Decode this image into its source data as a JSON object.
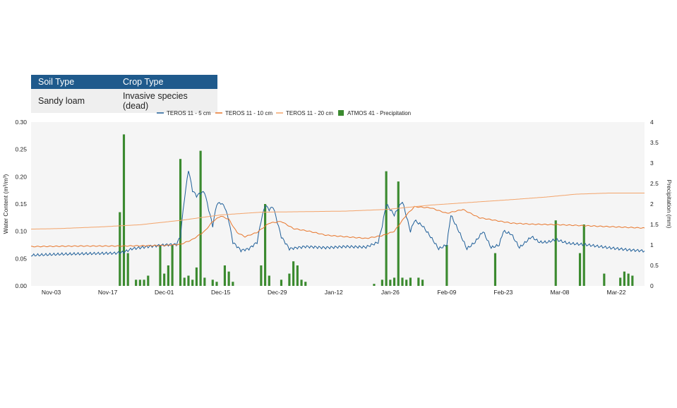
{
  "table": {
    "headers": [
      "Soil Type",
      "Crop Type"
    ],
    "row": [
      "Sandy loam",
      "Invasive species (dead)"
    ]
  },
  "chart_data": {
    "type": "line",
    "title": "",
    "xlabel": "",
    "ylabel": "Water Content (m³/m³)",
    "y2label": "Precipitation (mm)",
    "ylim": [
      0,
      0.3
    ],
    "y2lim": [
      0,
      4
    ],
    "xlim": [
      "2023-10-29",
      "2024-03-29"
    ],
    "x_ticks": [
      "Nov-03",
      "Nov-17",
      "Dec-01",
      "Dec-15",
      "Dec-29",
      "Jan-12",
      "Jan-26",
      "Feb-09",
      "Feb-23",
      "Mar-08",
      "Mar-22"
    ],
    "y_ticks": [
      "0.00",
      "0.05",
      "0.10",
      "0.15",
      "0.20",
      "0.25",
      "0.30"
    ],
    "y2_ticks": [
      "0",
      "0.5",
      "1",
      "1.5",
      "2",
      "2.5",
      "3",
      "3.5",
      "4"
    ],
    "legend_position": "top",
    "grid": false,
    "colors": {
      "teros5": "#1f5f99",
      "teros10": "#e8762b",
      "teros20": "#f3a46b",
      "precip": "#3b8a2f",
      "plot_bg": "#f5f5f5",
      "table_header": "#1f5a8c"
    },
    "series": [
      {
        "name": "TEROS 11 - 5 cm",
        "color": "#1f5f99",
        "points": [
          [
            "2023-10-29",
            0.056
          ],
          [
            "2023-11-05",
            0.058
          ],
          [
            "2023-11-12",
            0.059
          ],
          [
            "2023-11-19",
            0.06
          ],
          [
            "2023-11-21",
            0.062
          ],
          [
            "2023-11-23",
            0.068
          ],
          [
            "2023-11-27",
            0.072
          ],
          [
            "2023-12-01",
            0.075
          ],
          [
            "2023-12-04",
            0.076
          ],
          [
            "2023-12-05",
            0.09
          ],
          [
            "2023-12-06",
            0.16
          ],
          [
            "2023-12-07",
            0.213
          ],
          [
            "2023-12-08",
            0.175
          ],
          [
            "2023-12-09",
            0.165
          ],
          [
            "2023-12-10",
            0.17
          ],
          [
            "2023-12-11",
            0.172
          ],
          [
            "2023-12-12",
            0.14
          ],
          [
            "2023-12-13",
            0.11
          ],
          [
            "2023-12-14",
            0.15
          ],
          [
            "2023-12-15",
            0.152
          ],
          [
            "2023-12-16",
            0.145
          ],
          [
            "2023-12-17",
            0.12
          ],
          [
            "2023-12-18",
            0.08
          ],
          [
            "2023-12-20",
            0.065
          ],
          [
            "2023-12-22",
            0.068
          ],
          [
            "2023-12-24",
            0.08
          ],
          [
            "2023-12-25",
            0.12
          ],
          [
            "2023-12-26",
            0.148
          ],
          [
            "2023-12-27",
            0.14
          ],
          [
            "2023-12-28",
            0.145
          ],
          [
            "2023-12-30",
            0.09
          ],
          [
            "2024-01-01",
            0.068
          ],
          [
            "2024-01-05",
            0.072
          ],
          [
            "2024-01-10",
            0.07
          ],
          [
            "2024-01-15",
            0.072
          ],
          [
            "2024-01-20",
            0.071
          ],
          [
            "2024-01-23",
            0.08
          ],
          [
            "2024-01-24",
            0.11
          ],
          [
            "2024-01-25",
            0.15
          ],
          [
            "2024-01-27",
            0.13
          ],
          [
            "2024-01-29",
            0.155
          ],
          [
            "2024-01-31",
            0.1
          ],
          [
            "2024-02-01",
            0.12
          ],
          [
            "2024-02-03",
            0.11
          ],
          [
            "2024-02-05",
            0.09
          ],
          [
            "2024-02-07",
            0.068
          ],
          [
            "2024-02-09",
            0.075
          ],
          [
            "2024-02-10",
            0.13
          ],
          [
            "2024-02-12",
            0.1
          ],
          [
            "2024-02-14",
            0.068
          ],
          [
            "2024-02-16",
            0.08
          ],
          [
            "2024-02-18",
            0.1
          ],
          [
            "2024-02-20",
            0.07
          ],
          [
            "2024-02-22",
            0.075
          ],
          [
            "2024-02-23",
            0.1
          ],
          [
            "2024-02-25",
            0.095
          ],
          [
            "2024-02-27",
            0.07
          ],
          [
            "2024-03-01",
            0.09
          ],
          [
            "2024-03-03",
            0.08
          ],
          [
            "2024-03-05",
            0.08
          ],
          [
            "2024-03-07",
            0.085
          ],
          [
            "2024-03-10",
            0.078
          ],
          [
            "2024-03-15",
            0.075
          ],
          [
            "2024-03-20",
            0.07
          ],
          [
            "2024-03-25",
            0.066
          ],
          [
            "2024-03-29",
            0.064
          ]
        ]
      },
      {
        "name": "TEROS 11 - 10 cm",
        "color": "#e8762b",
        "points": [
          [
            "2023-10-29",
            0.072
          ],
          [
            "2023-11-10",
            0.073
          ],
          [
            "2023-11-20",
            0.073
          ],
          [
            "2023-12-01",
            0.074
          ],
          [
            "2023-12-05",
            0.076
          ],
          [
            "2023-12-08",
            0.085
          ],
          [
            "2023-12-11",
            0.1
          ],
          [
            "2023-12-13",
            0.118
          ],
          [
            "2023-12-15",
            0.128
          ],
          [
            "2023-12-17",
            0.122
          ],
          [
            "2023-12-19",
            0.098
          ],
          [
            "2023-12-21",
            0.09
          ],
          [
            "2023-12-24",
            0.098
          ],
          [
            "2023-12-27",
            0.115
          ],
          [
            "2023-12-30",
            0.118
          ],
          [
            "2024-01-02",
            0.105
          ],
          [
            "2024-01-06",
            0.1
          ],
          [
            "2024-01-10",
            0.093
          ],
          [
            "2024-01-15",
            0.09
          ],
          [
            "2024-01-20",
            0.087
          ],
          [
            "2024-01-24",
            0.092
          ],
          [
            "2024-01-27",
            0.1
          ],
          [
            "2024-01-30",
            0.13
          ],
          [
            "2024-02-01",
            0.145
          ],
          [
            "2024-02-05",
            0.143
          ],
          [
            "2024-02-09",
            0.133
          ],
          [
            "2024-02-13",
            0.14
          ],
          [
            "2024-02-17",
            0.125
          ],
          [
            "2024-02-21",
            0.12
          ],
          [
            "2024-02-25",
            0.115
          ],
          [
            "2024-03-01",
            0.113
          ],
          [
            "2024-03-08",
            0.112
          ],
          [
            "2024-03-15",
            0.11
          ],
          [
            "2024-03-22",
            0.108
          ],
          [
            "2024-03-29",
            0.106
          ]
        ]
      },
      {
        "name": "TEROS 11 - 20 cm",
        "color": "#f3a46b",
        "points": [
          [
            "2023-10-29",
            0.104
          ],
          [
            "2023-11-05",
            0.105
          ],
          [
            "2023-11-15",
            0.108
          ],
          [
            "2023-11-25",
            0.112
          ],
          [
            "2023-12-05",
            0.12
          ],
          [
            "2023-12-15",
            0.13
          ],
          [
            "2023-12-25",
            0.135
          ],
          [
            "2024-01-05",
            0.136
          ],
          [
            "2024-01-15",
            0.137
          ],
          [
            "2024-01-25",
            0.14
          ],
          [
            "2024-02-05",
            0.148
          ],
          [
            "2024-02-15",
            0.153
          ],
          [
            "2024-02-25",
            0.158
          ],
          [
            "2024-03-05",
            0.163
          ],
          [
            "2024-03-12",
            0.168
          ],
          [
            "2024-03-20",
            0.17
          ],
          [
            "2024-03-29",
            0.17
          ]
        ]
      }
    ],
    "bars": {
      "name": "ATMOS 41 - Precipitation",
      "color": "#3b8a2f",
      "axis": "right",
      "points": [
        [
          "2023-11-20",
          1.8
        ],
        [
          "2023-11-21",
          3.7
        ],
        [
          "2023-11-22",
          0.8
        ],
        [
          "2023-11-24",
          0.15
        ],
        [
          "2023-11-25",
          0.15
        ],
        [
          "2023-11-26",
          0.15
        ],
        [
          "2023-11-27",
          0.25
        ],
        [
          "2023-11-30",
          1.0
        ],
        [
          "2023-12-01",
          0.3
        ],
        [
          "2023-12-02",
          0.5
        ],
        [
          "2023-12-03",
          1.0
        ],
        [
          "2023-12-05",
          3.1
        ],
        [
          "2023-12-06",
          0.2
        ],
        [
          "2023-12-07",
          0.25
        ],
        [
          "2023-12-08",
          0.15
        ],
        [
          "2023-12-09",
          0.45
        ],
        [
          "2023-12-10",
          3.3
        ],
        [
          "2023-12-11",
          0.2
        ],
        [
          "2023-12-13",
          0.15
        ],
        [
          "2023-12-14",
          0.1
        ],
        [
          "2023-12-16",
          0.5
        ],
        [
          "2023-12-17",
          0.35
        ],
        [
          "2023-12-18",
          0.1
        ],
        [
          "2023-12-25",
          0.5
        ],
        [
          "2023-12-26",
          2.0
        ],
        [
          "2023-12-27",
          0.25
        ],
        [
          "2023-12-30",
          0.15
        ],
        [
          "2024-01-01",
          0.3
        ],
        [
          "2024-01-02",
          0.6
        ],
        [
          "2024-01-03",
          0.5
        ],
        [
          "2024-01-04",
          0.15
        ],
        [
          "2024-01-05",
          0.1
        ],
        [
          "2024-01-22",
          0.05
        ],
        [
          "2024-01-24",
          0.15
        ],
        [
          "2024-01-25",
          2.8
        ],
        [
          "2024-01-26",
          0.15
        ],
        [
          "2024-01-27",
          0.2
        ],
        [
          "2024-01-28",
          2.55
        ],
        [
          "2024-01-29",
          0.2
        ],
        [
          "2024-01-30",
          0.15
        ],
        [
          "2024-01-31",
          0.2
        ],
        [
          "2024-02-02",
          0.2
        ],
        [
          "2024-02-03",
          0.15
        ],
        [
          "2024-02-09",
          1.0
        ],
        [
          "2024-02-21",
          0.8
        ],
        [
          "2024-03-07",
          1.6
        ],
        [
          "2024-03-13",
          0.8
        ],
        [
          "2024-03-14",
          1.5
        ],
        [
          "2024-03-19",
          0.3
        ],
        [
          "2024-03-23",
          0.2
        ],
        [
          "2024-03-24",
          0.35
        ],
        [
          "2024-03-25",
          0.3
        ],
        [
          "2024-03-26",
          0.25
        ]
      ]
    }
  }
}
